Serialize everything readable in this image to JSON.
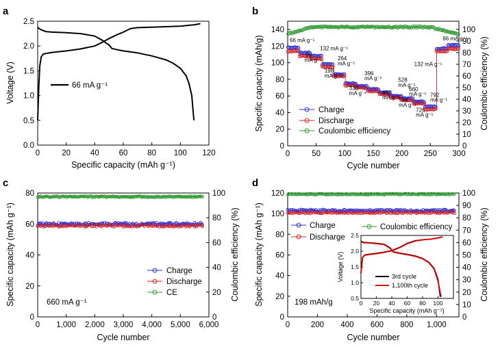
{
  "chart_data": [
    {
      "panel": "a",
      "type": "line",
      "xlabel": "Specific capacity (mAh g⁻¹)",
      "ylabel": "Voltage (V)",
      "xlim": [
        0,
        120
      ],
      "ylim": [
        0,
        2.5
      ],
      "xticks": [
        0,
        20,
        40,
        60,
        80,
        100,
        120
      ],
      "yticks": [
        0.0,
        0.5,
        1.0,
        1.5,
        2.0,
        2.5
      ],
      "ytick_labels": [
        "0.0",
        "0.5",
        "1.0",
        "1.5",
        "2.0",
        "2.5"
      ],
      "legend": [
        "66 mA g⁻¹"
      ],
      "series": [
        {
          "color": "#000000",
          "x": [
            0,
            0.8,
            1.5,
            2.5,
            4,
            6,
            10,
            20,
            30,
            40,
            45,
            50,
            55,
            60,
            65,
            70,
            80,
            90,
            100,
            110,
            114
          ],
          "y": [
            0.5,
            1.2,
            1.6,
            1.78,
            1.84,
            1.85,
            1.87,
            1.9,
            1.94,
            2.0,
            2.07,
            2.15,
            2.22,
            2.28,
            2.35,
            2.37,
            2.38,
            2.39,
            2.4,
            2.43,
            2.45
          ]
        },
        {
          "color": "#000000",
          "x": [
            0,
            1,
            3,
            6,
            10,
            20,
            30,
            40,
            45,
            50,
            52,
            55,
            60,
            70,
            80,
            90,
            95,
            100,
            104,
            106,
            108,
            109.5
          ],
          "y": [
            2.38,
            2.35,
            2.32,
            2.29,
            2.28,
            2.27,
            2.25,
            2.2,
            2.12,
            2.02,
            1.95,
            1.93,
            1.9,
            1.86,
            1.8,
            1.72,
            1.65,
            1.55,
            1.4,
            1.25,
            1.0,
            0.5
          ]
        }
      ]
    },
    {
      "panel": "b",
      "type": "scatter",
      "xlabel": "Cycle number",
      "ylabel": "Specific capacity (mAh/g)",
      "y2label": "Coulombic efficiency (%)",
      "xlim": [
        0,
        300
      ],
      "ylim": [
        0,
        150
      ],
      "y2lim": [
        0,
        107
      ],
      "xticks": [
        0,
        50,
        100,
        150,
        200,
        250,
        300
      ],
      "yticks": [
        0,
        20,
        40,
        60,
        80,
        100,
        120,
        140
      ],
      "y2ticks": [
        0,
        10,
        20,
        30,
        40,
        50,
        60,
        70,
        80,
        90,
        100
      ],
      "legend": [
        "Charge",
        "Discharge",
        "Coulombic efficiency"
      ],
      "segments": [
        {
          "start": 1,
          "end": 20,
          "charge": 118,
          "discharge": 114
        },
        {
          "start": 21,
          "end": 40,
          "charge": 112,
          "discharge": 108
        },
        {
          "start": 41,
          "end": 60,
          "charge": 108,
          "discharge": 105
        },
        {
          "start": 61,
          "end": 80,
          "charge": 98,
          "discharge": 95
        },
        {
          "start": 81,
          "end": 100,
          "charge": 86,
          "discharge": 84
        },
        {
          "start": 101,
          "end": 120,
          "charge": 75,
          "discharge": 73
        },
        {
          "start": 121,
          "end": 140,
          "charge": 72,
          "discharge": 70
        },
        {
          "start": 141,
          "end": 160,
          "charge": 68,
          "discharge": 66
        },
        {
          "start": 161,
          "end": 180,
          "charge": 64,
          "discharge": 62
        },
        {
          "start": 181,
          "end": 200,
          "charge": 60,
          "discharge": 58
        },
        {
          "start": 201,
          "end": 220,
          "charge": 57,
          "discharge": 55
        },
        {
          "start": 221,
          "end": 240,
          "charge": 53,
          "discharge": 51
        },
        {
          "start": 241,
          "end": 260,
          "charge": 47,
          "discharge": 44
        },
        {
          "start": 261,
          "end": 280,
          "charge": 117,
          "discharge": 114
        },
        {
          "start": 281,
          "end": 300,
          "charge": 121,
          "discharge": 117
        }
      ],
      "ce_pct": {
        "start": 96,
        "plateau": 102,
        "end": 96
      },
      "annotations": [
        {
          "text": "66 mA g⁻¹",
          "x": 0,
          "y": 125
        },
        {
          "text": "99",
          "x": 28,
          "y": 107
        },
        {
          "text": "mA g⁻¹",
          "x": 26,
          "y": 101
        },
        {
          "text": "132 mA g⁻¹",
          "x": 53,
          "y": 115
        },
        {
          "text": "264",
          "x": 84,
          "y": 103
        },
        {
          "text": "mA g⁻¹",
          "x": 84,
          "y": 97
        },
        {
          "text": "198",
          "x": 61,
          "y": 88
        },
        {
          "text": "mA g⁻¹",
          "x": 61,
          "y": 82
        },
        {
          "text": "396",
          "x": 131,
          "y": 85
        },
        {
          "text": "mA g⁻¹",
          "x": 131,
          "y": 79
        },
        {
          "text": "330",
          "x": 104,
          "y": 67
        },
        {
          "text": "mA g⁻¹",
          "x": 104,
          "y": 61
        },
        {
          "text": "528",
          "x": 190,
          "y": 77
        },
        {
          "text": "mA g⁻¹",
          "x": 190,
          "y": 71
        },
        {
          "text": "462",
          "x": 162,
          "y": 62
        },
        {
          "text": "mA g⁻¹",
          "x": 162,
          "y": 56
        },
        {
          "text": "660",
          "x": 209,
          "y": 66
        },
        {
          "text": "mA g⁻¹",
          "x": 209,
          "y": 60
        },
        {
          "text": "594",
          "x": 191,
          "y": 53
        },
        {
          "text": "mA g⁻¹",
          "x": 191,
          "y": 47
        },
        {
          "text": "792",
          "x": 246,
          "y": 59
        },
        {
          "text": "mA g⁻¹",
          "x": 246,
          "y": 53
        },
        {
          "text": "726",
          "x": 221,
          "y": 41
        },
        {
          "text": "mA g⁻¹",
          "x": 221,
          "y": 35
        },
        {
          "text": "132 mA g⁻¹",
          "x": 218,
          "y": 96
        },
        {
          "text": "66 mA g⁻¹",
          "x": 268,
          "y": 127
        }
      ]
    },
    {
      "panel": "c",
      "type": "scatter",
      "xlabel": "Cycle number",
      "ylabel": "Specific capacity (mAh g⁻¹)",
      "y2label": "Coulombic efficiency (%)",
      "xlim": [
        0,
        6000
      ],
      "ylim": [
        0,
        80
      ],
      "y2lim": [
        0,
        100
      ],
      "xticks": [
        0,
        1000,
        2000,
        3000,
        4000,
        5000,
        6000
      ],
      "xtick_labels": [
        "0",
        "1,000",
        "2,000",
        "3,000",
        "4,000",
        "5,000",
        "6,000"
      ],
      "yticks": [
        0,
        20,
        40,
        60,
        80
      ],
      "y2ticks": [
        0,
        20,
        40,
        60,
        80,
        100
      ],
      "legend": [
        "Charge",
        "Discharge",
        "CE"
      ],
      "annotation": "660 mA g⁻¹",
      "charge_mean": 60,
      "discharge_mean": 59,
      "ce_pct": 97,
      "x_end": 5800
    },
    {
      "panel": "d",
      "type": "scatter",
      "xlabel": "Cycle number",
      "ylabel": "Specific capacity (mAh g⁻¹)",
      "y2label": "Coulombic efficiency (%)",
      "xlim": [
        0,
        1150
      ],
      "ylim": [
        0,
        120
      ],
      "y2lim": [
        0,
        100
      ],
      "xticks": [
        0,
        200,
        400,
        600,
        800,
        1000
      ],
      "xtick_labels": [
        "0",
        "200",
        "400",
        "600",
        "800",
        "1,000"
      ],
      "yticks": [
        0,
        20,
        40,
        60,
        80,
        100,
        120
      ],
      "y2ticks": [
        0,
        10,
        20,
        30,
        40,
        50,
        60,
        70,
        80,
        90,
        100
      ],
      "legend": [
        "Charge",
        "Discharge",
        "Coulombic efficiency"
      ],
      "annotation": "198 mAh/g",
      "charge_mean": 103,
      "discharge_mean": 101,
      "ce_pct": 99,
      "x_end": 1120,
      "inset": {
        "type": "line",
        "xlabel": "Specific capacity (mAh g⁻¹)",
        "ylabel": "Voltage (V)",
        "xlim": [
          0,
          120
        ],
        "ylim": [
          0.5,
          2.5
        ],
        "xticks": [
          0,
          20,
          40,
          60,
          80,
          100
        ],
        "yticks": [
          0.5,
          1.0,
          1.5,
          2.0,
          2.5
        ],
        "ytick_labels": [
          "0.5",
          "1.0",
          "1.5",
          "2.0",
          "2.5"
        ],
        "legend": [
          "3rd cycle",
          "1,100th cycle"
        ],
        "series": [
          {
            "color": "#000000",
            "charge": {
              "x": [
                0,
                2,
                5,
                10,
                20,
                30,
                40,
                50,
                60,
                70,
                80,
                90,
                100,
                105
              ],
              "y": [
                1.3,
                1.8,
                1.88,
                1.9,
                1.93,
                1.97,
                2.02,
                2.12,
                2.25,
                2.33,
                2.36,
                2.38,
                2.42,
                2.45
              ]
            },
            "discharge": {
              "x": [
                0,
                3,
                10,
                20,
                30,
                38,
                42,
                50,
                60,
                70,
                80,
                88,
                95,
                100,
                103
              ],
              "y": [
                2.32,
                2.28,
                2.27,
                2.25,
                2.22,
                2.1,
                1.98,
                1.94,
                1.9,
                1.85,
                1.77,
                1.65,
                1.45,
                1.1,
                0.55
              ]
            }
          },
          {
            "color": "#e00000",
            "charge": {
              "x": [
                0,
                2,
                5,
                10,
                20,
                30,
                40,
                50,
                60,
                70,
                80,
                90,
                100,
                106
              ],
              "y": [
                1.3,
                1.8,
                1.87,
                1.89,
                1.92,
                1.96,
                2.01,
                2.11,
                2.24,
                2.32,
                2.36,
                2.38,
                2.42,
                2.45
              ]
            },
            "discharge": {
              "x": [
                0,
                3,
                10,
                20,
                30,
                38,
                42,
                50,
                60,
                70,
                80,
                88,
                95,
                100,
                104
              ],
              "y": [
                2.3,
                2.27,
                2.26,
                2.24,
                2.21,
                2.09,
                1.97,
                1.93,
                1.89,
                1.84,
                1.76,
                1.64,
                1.43,
                1.05,
                0.55
              ]
            }
          }
        ]
      }
    }
  ],
  "colors": {
    "charge": "#2b2bd6",
    "discharge": "#d62020",
    "ce": "#2e9a2e",
    "line": "#000000"
  },
  "panel_letters": [
    "a",
    "b",
    "c",
    "d"
  ]
}
